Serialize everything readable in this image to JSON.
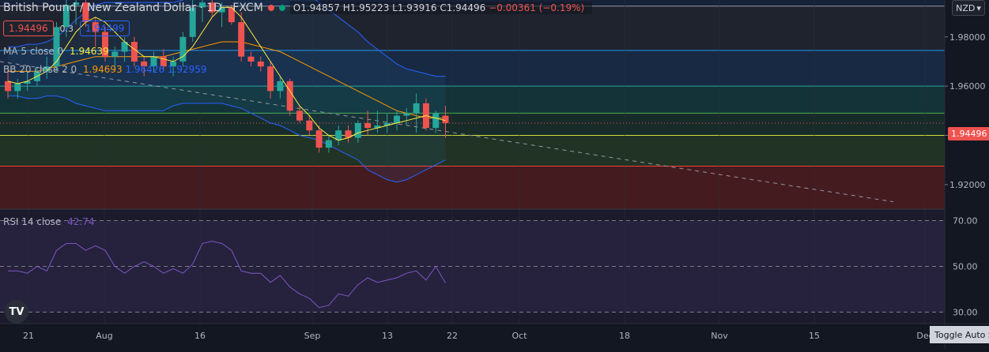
{
  "symbol": {
    "title": "British Pound / New Zealand Dollar · 1D · FXCM",
    "open": "O1.94857",
    "high": "H1.95223",
    "low": "L1.93916",
    "close": "C1.94496",
    "change": "−0.00361 (−0.19%)",
    "bid": "1.94496",
    "spread": "0.3",
    "ask": "1.94499"
  },
  "indicators": {
    "ma_name": "MA 5 close 0",
    "ma_value": "1.94639",
    "bb_name": "BB 20 close 2 0",
    "bb_basis": "1.94693",
    "bb_upper": "1.96426",
    "bb_lower": "1.92959",
    "rsi_name": "RSI 14 close",
    "rsi_value": "42.74"
  },
  "price_axis": {
    "currency": "NZD",
    "ticks": [
      "1.98000",
      "1.96000",
      "1.94000",
      "1.92000"
    ],
    "current_price": "1.94496"
  },
  "rsi_axis": {
    "ticks": [
      "70.00",
      "50.00",
      "30.00"
    ]
  },
  "time_axis": {
    "ticks": [
      "21",
      "Aug",
      "16",
      "Sep",
      "13",
      "22",
      "Oct",
      "18",
      "Nov",
      "15",
      "Dec"
    ]
  },
  "buttons": {
    "toggle_auto_scale": "Toggle Auto Scale",
    "logo": "TV"
  },
  "colors": {
    "up": "#26a69a",
    "down": "#ef5350",
    "ma": "#ffeb3b",
    "bb_basis": "#ff9800",
    "bb_band": "#2962ff",
    "rsi": "#7e57c2"
  },
  "chart_data": {
    "type": "candlestick",
    "price_range": [
      1.91,
      1.995
    ],
    "rsi_range": [
      25,
      75
    ],
    "candles": [
      [
        1.962,
        1.968,
        1.955,
        1.958
      ],
      [
        1.958,
        1.963,
        1.955,
        1.961
      ],
      [
        1.961,
        1.966,
        1.958,
        1.962
      ],
      [
        1.962,
        1.968,
        1.96,
        1.966
      ],
      [
        1.966,
        1.972,
        1.963,
        1.968
      ],
      [
        1.968,
        1.986,
        1.966,
        1.984
      ],
      [
        1.984,
        1.995,
        1.98,
        1.993
      ],
      [
        1.993,
        1.998,
        1.985,
        1.994
      ],
      [
        1.994,
        1.996,
        1.984,
        1.986
      ],
      [
        1.986,
        1.988,
        1.976,
        1.982
      ],
      [
        1.982,
        1.984,
        1.97,
        1.972
      ],
      [
        1.972,
        1.976,
        1.966,
        1.974
      ],
      [
        1.974,
        1.98,
        1.97,
        1.978
      ],
      [
        1.978,
        1.98,
        1.968,
        1.97
      ],
      [
        1.97,
        1.972,
        1.964,
        1.968
      ],
      [
        1.968,
        1.974,
        1.966,
        1.972
      ],
      [
        1.972,
        1.975,
        1.966,
        1.968
      ],
      [
        1.968,
        1.972,
        1.964,
        1.97
      ],
      [
        1.97,
        1.982,
        1.968,
        1.98
      ],
      [
        1.98,
        1.995,
        1.978,
        1.992
      ],
      [
        1.992,
        1.998,
        1.986,
        1.994
      ],
      [
        1.994,
        1.996,
        1.988,
        1.99
      ],
      [
        1.99,
        1.994,
        1.984,
        1.992
      ],
      [
        1.992,
        1.993,
        1.985,
        1.986
      ],
      [
        1.986,
        1.99,
        1.97,
        1.972
      ],
      [
        1.972,
        1.974,
        1.968,
        1.97
      ],
      [
        1.97,
        1.972,
        1.966,
        1.968
      ],
      [
        1.968,
        1.97,
        1.955,
        1.958
      ],
      [
        1.958,
        1.964,
        1.955,
        1.962
      ],
      [
        1.962,
        1.963,
        1.948,
        1.95
      ],
      [
        1.95,
        1.952,
        1.945,
        1.946
      ],
      [
        1.946,
        1.948,
        1.94,
        1.942
      ],
      [
        1.942,
        1.944,
        1.933,
        1.935
      ],
      [
        1.935,
        1.94,
        1.933,
        1.938
      ],
      [
        1.938,
        1.944,
        1.936,
        1.942
      ],
      [
        1.942,
        1.944,
        1.937,
        1.939
      ],
      [
        1.939,
        1.946,
        1.937,
        1.945
      ],
      [
        1.945,
        1.95,
        1.94,
        1.943
      ],
      [
        1.943,
        1.95,
        1.941,
        1.944
      ],
      [
        1.944,
        1.949,
        1.941,
        1.945
      ],
      [
        1.945,
        1.95,
        1.942,
        1.948
      ],
      [
        1.948,
        1.951,
        1.944,
        1.949
      ],
      [
        1.949,
        1.957,
        1.941,
        1.953
      ],
      [
        1.953,
        1.955,
        1.942,
        1.943
      ],
      [
        1.943,
        1.95,
        1.941,
        1.949
      ],
      [
        1.948,
        1.952,
        1.939,
        1.945
      ]
    ],
    "ma5": [
      1.962,
      1.961,
      1.962,
      1.964,
      1.966,
      1.97,
      1.976,
      1.982,
      1.986,
      1.988,
      1.986,
      1.982,
      1.978,
      1.975,
      1.972,
      1.972,
      1.971,
      1.97,
      1.972,
      1.976,
      1.982,
      1.988,
      1.992,
      1.992,
      1.988,
      1.982,
      1.976,
      1.97,
      1.964,
      1.958,
      1.952,
      1.948,
      1.943,
      1.94,
      1.938,
      1.939,
      1.941,
      1.942,
      1.943,
      1.944,
      1.945,
      1.946,
      1.947,
      1.948,
      1.947,
      1.946
    ],
    "bb_basis": [
      1.966,
      1.966,
      1.966,
      1.966,
      1.967,
      1.968,
      1.969,
      1.97,
      1.971,
      1.972,
      1.972,
      1.972,
      1.972,
      1.972,
      1.972,
      1.972,
      1.972,
      1.973,
      1.974,
      1.975,
      1.976,
      1.977,
      1.978,
      1.978,
      1.978,
      1.977,
      1.976,
      1.975,
      1.974,
      1.972,
      1.97,
      1.968,
      1.966,
      1.964,
      1.962,
      1.96,
      1.958,
      1.956,
      1.954,
      1.952,
      1.95,
      1.949,
      1.948,
      1.947,
      1.947,
      1.947
    ],
    "bb_upper": [
      1.976,
      1.976,
      1.977,
      1.977,
      1.978,
      1.98,
      1.983,
      1.987,
      1.99,
      1.993,
      1.994,
      1.994,
      1.994,
      1.994,
      1.994,
      1.994,
      1.994,
      1.994,
      1.995,
      1.997,
      1.999,
      2.001,
      2.003,
      2.004,
      2.005,
      2.005,
      2.005,
      2.005,
      2.004,
      2.002,
      2.0,
      1.997,
      1.994,
      1.991,
      1.988,
      1.985,
      1.982,
      1.978,
      1.975,
      1.972,
      1.969,
      1.967,
      1.966,
      1.965,
      1.964,
      1.964
    ],
    "bb_lower": [
      1.956,
      1.956,
      1.955,
      1.955,
      1.956,
      1.956,
      1.955,
      1.953,
      1.952,
      1.951,
      1.95,
      1.95,
      1.95,
      1.95,
      1.95,
      1.95,
      1.95,
      1.952,
      1.953,
      1.953,
      1.953,
      1.953,
      1.953,
      1.952,
      1.951,
      1.949,
      1.947,
      1.945,
      1.944,
      1.942,
      1.94,
      1.939,
      1.938,
      1.936,
      1.934,
      1.932,
      1.93,
      1.926,
      1.924,
      1.922,
      1.921,
      1.922,
      1.924,
      1.926,
      1.928,
      1.93
    ],
    "rsi": [
      48,
      48,
      47,
      50,
      48,
      57,
      60,
      60,
      57,
      59,
      57,
      50,
      47,
      50,
      52,
      50,
      47,
      49,
      47,
      51,
      60,
      61,
      60,
      57,
      48,
      47,
      47,
      43,
      46,
      41,
      38,
      36,
      32,
      33,
      38,
      37,
      42,
      45,
      43,
      44,
      45,
      47,
      48,
      44,
      50,
      42.74
    ],
    "fib_levels": [
      1.9925,
      1.9745,
      1.96,
      1.949,
      1.94,
      1.9275
    ]
  }
}
